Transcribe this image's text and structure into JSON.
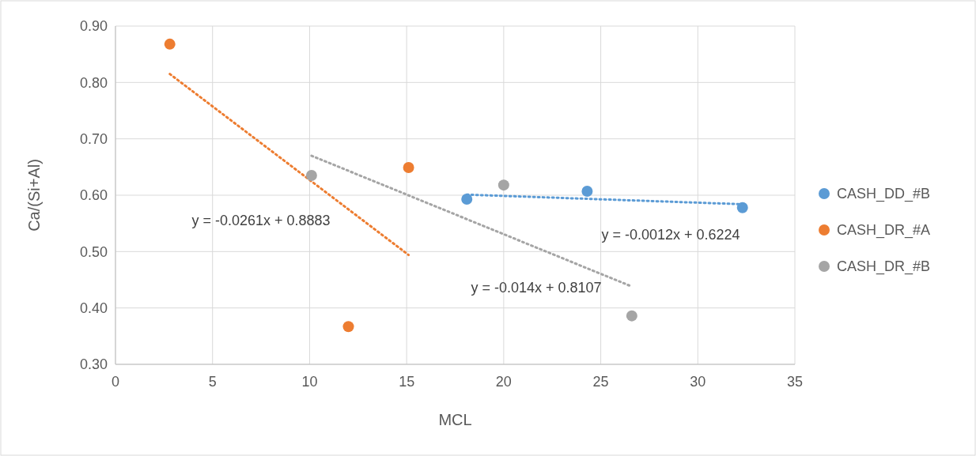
{
  "chart_data": {
    "type": "scatter",
    "xlabel": "MCL",
    "ylabel": "Ca/(Si+Al)",
    "xlim": [
      0,
      35
    ],
    "xticks": [
      0,
      5,
      10,
      15,
      20,
      25,
      30,
      35
    ],
    "ylim": [
      0.3,
      0.9
    ],
    "yticks": [
      {
        "value": 0.3,
        "label": "0.30"
      },
      {
        "value": 0.4,
        "label": "0.40"
      },
      {
        "value": 0.5,
        "label": "0.50"
      },
      {
        "value": 0.6,
        "label": "0.60"
      },
      {
        "value": 0.7,
        "label": "0.70"
      },
      {
        "value": 0.8,
        "label": "0.80"
      },
      {
        "value": 0.9,
        "label": "0.90"
      }
    ],
    "grid": true,
    "legend": "right",
    "marker": "circle",
    "series": [
      {
        "name": "CASH_DD_#B",
        "color": "#5b9bd5",
        "x": [
          18.1,
          24.3,
          32.3
        ],
        "values": [
          0.593,
          0.607,
          0.578
        ]
      },
      {
        "name": "CASH_DR_#A",
        "color": "#ed7d31",
        "x": [
          2.8,
          15.1,
          12.0
        ],
        "values": [
          0.868,
          0.649,
          0.367
        ]
      },
      {
        "name": "CASH_DR_#B",
        "color": "#a5a5a5",
        "x": [
          10.1,
          20.0,
          26.6
        ],
        "values": [
          0.635,
          0.618,
          0.386
        ]
      },
      {
        "type": "line",
        "line_style": "dotted",
        "color": "#5b9bd5",
        "x": [
          18.1,
          32.3
        ],
        "values": [
          0.601,
          0.584
        ],
        "marker": "none"
      },
      {
        "type": "line",
        "line_style": "dotted",
        "color": "#ed7d31",
        "x": [
          2.8,
          15.1
        ],
        "values": [
          0.815,
          0.494
        ],
        "marker": "none"
      },
      {
        "type": "line",
        "line_style": "dotted",
        "color": "#a5a5a5",
        "x": [
          10.1,
          26.6
        ],
        "values": [
          0.67,
          0.438
        ],
        "marker": "none"
      }
    ],
    "annotations": [
      "y = -0.0261x + 0.8883",
      "y = -0.0012x + 0.6224",
      "y = -0.014x + 0.8107"
    ]
  }
}
